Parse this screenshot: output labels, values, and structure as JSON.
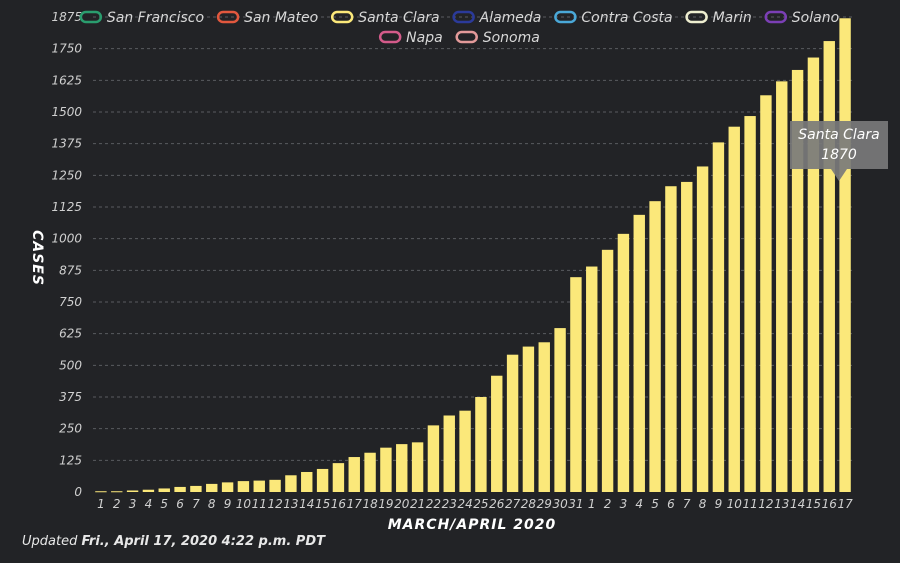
{
  "chart_data": {
    "type": "bar",
    "ylabel": "CASES",
    "xlabel": "MARCH/APRIL 2020",
    "ylim": [
      0,
      1875
    ],
    "y_ticks": [
      "0",
      "125",
      "250",
      "375",
      "500",
      "625",
      "750",
      "875",
      "1000",
      "1125",
      "1250",
      "1375",
      "1500",
      "1625",
      "1750",
      "1875"
    ],
    "grid": true,
    "legend_placement": "top",
    "categories": [
      "1",
      "2",
      "3",
      "4",
      "5",
      "6",
      "7",
      "8",
      "9",
      "10",
      "11",
      "12",
      "13",
      "14",
      "15",
      "16",
      "17",
      "18",
      "19",
      "20",
      "21",
      "22",
      "23",
      "24",
      "25",
      "26",
      "27",
      "28",
      "29",
      "30",
      "31",
      "1",
      "2",
      "3",
      "4",
      "5",
      "6",
      "7",
      "8",
      "9",
      "10",
      "11",
      "12",
      "13",
      "14",
      "15",
      "16",
      "17"
    ],
    "legend": [
      {
        "name": "San Francisco",
        "color": "#2a9d6e"
      },
      {
        "name": "San Mateo",
        "color": "#e2583e"
      },
      {
        "name": "Santa Clara",
        "color": "#fbe87a"
      },
      {
        "name": "Alameda",
        "color": "#2b3a9a"
      },
      {
        "name": "Contra Costa",
        "color": "#4aa8d8"
      },
      {
        "name": "Marin",
        "color": "#eeeed0"
      },
      {
        "name": "Solano",
        "color": "#7b3fb5"
      },
      {
        "name": "Napa",
        "color": "#d45b8a"
      },
      {
        "name": "Sonoma",
        "color": "#e39a9a"
      }
    ],
    "series": [
      {
        "name": "Santa Clara",
        "color": "#fbe87a",
        "values": [
          3,
          3,
          6,
          9,
          14,
          20,
          24,
          32,
          38,
          43,
          45,
          48,
          66,
          79,
          91,
          114,
          138,
          155,
          175,
          189,
          196,
          263,
          302,
          321,
          375,
          459,
          542,
          574,
          591,
          647,
          848,
          890,
          956,
          1019,
          1094,
          1148,
          1207,
          1224,
          1285,
          1380,
          1442,
          1484,
          1566,
          1621,
          1666,
          1715,
          1780,
          1870
        ]
      }
    ],
    "tooltip": {
      "series": "Santa Clara",
      "value": "1870"
    }
  },
  "footer": {
    "prefix": "Updated ",
    "date": "Fri., April 17, 2020 4:22 p.m. PDT"
  }
}
